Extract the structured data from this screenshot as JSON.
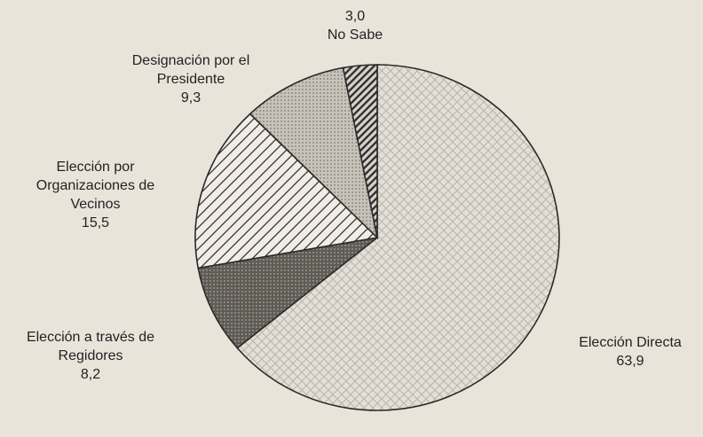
{
  "chart_data": {
    "type": "pie",
    "categories": [
      "Elección Directa",
      "Elección a través de Regidores",
      "Elección por Organizaciones de Vecinos",
      "Designación por el Presidente",
      "No Sabe"
    ],
    "values": [
      63.9,
      8.2,
      15.5,
      9.3,
      3.0
    ],
    "value_labels": [
      "63,9",
      "8,2",
      "15,5",
      "9,3",
      "3,0"
    ],
    "colors": [
      "#d9d4cb",
      "#6a665f",
      "#efebe3",
      "#a9a59e",
      "#4a4640"
    ]
  }
}
